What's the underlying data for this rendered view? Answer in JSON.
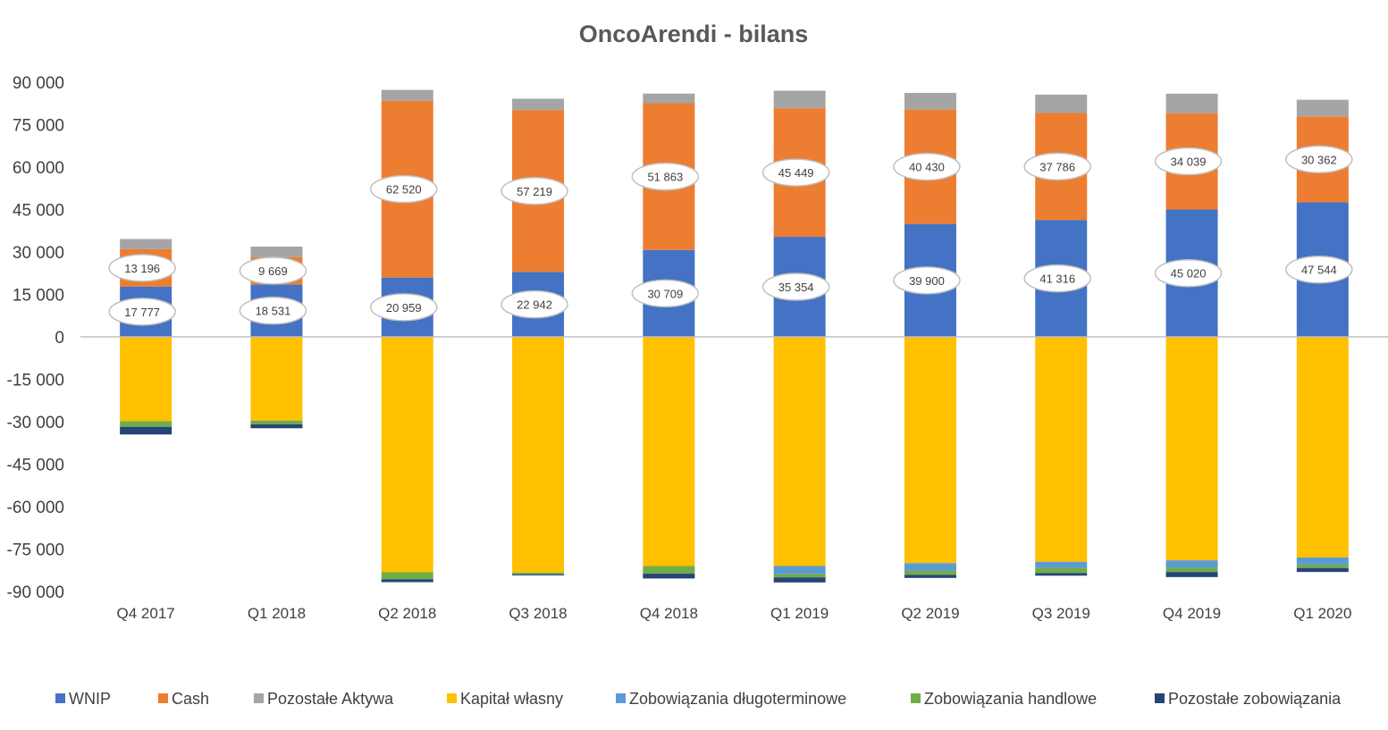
{
  "chart_data": {
    "type": "bar",
    "stacked": true,
    "title": "OncoArendi - bilans",
    "xlabel": "",
    "ylabel": "",
    "ylim": [
      -90000,
      90000
    ],
    "y_ticks": [
      90000,
      75000,
      60000,
      45000,
      30000,
      15000,
      0,
      -15000,
      -30000,
      -45000,
      -60000,
      -75000,
      -90000
    ],
    "y_tick_labels": [
      "90 000",
      "75 000",
      "60 000",
      "45 000",
      "30 000",
      "15 000",
      "0",
      "-15 000",
      "-30 000",
      "-45 000",
      "-60 000",
      "-75 000",
      "-90 000"
    ],
    "grid": false,
    "legend_position": "bottom",
    "categories": [
      "Q4 2017",
      "Q1 2018",
      "Q2 2018",
      "Q3 2018",
      "Q4 2018",
      "Q1 2019",
      "Q2 2019",
      "Q3 2019",
      "Q4 2019",
      "Q1 2020"
    ],
    "series": [
      {
        "name": "WNIP",
        "color": "#4472C4",
        "values": [
          17777,
          18531,
          20959,
          22942,
          30709,
          35354,
          39900,
          41316,
          45020,
          47544
        ]
      },
      {
        "name": "Cash",
        "color": "#ED7D31",
        "values": [
          13196,
          9669,
          62520,
          57219,
          51863,
          45449,
          40430,
          37786,
          34039,
          30362
        ]
      },
      {
        "name": "Pozostałe Aktywa",
        "color": "#A5A5A5",
        "values": [
          3600,
          3700,
          3800,
          4000,
          3400,
          6200,
          5900,
          6500,
          6900,
          5900
        ]
      },
      {
        "name": "Kapitał własny",
        "color": "#FFC000",
        "values": [
          -29800,
          -29600,
          -83200,
          -83300,
          -81000,
          -81000,
          -80000,
          -79500,
          -79000,
          -78000
        ]
      },
      {
        "name": "Zobowiązania długoterminowe",
        "color": "#5B9BD5",
        "values": [
          0,
          0,
          0,
          0,
          0,
          -2800,
          -2600,
          -2100,
          -2500,
          -2500
        ]
      },
      {
        "name": "Zobowiązania handlowe",
        "color": "#70AD47",
        "values": [
          -2000,
          -1300,
          -2500,
          -600,
          -2700,
          -1200,
          -1500,
          -1900,
          -1600,
          -1200
        ]
      },
      {
        "name": "Pozostałe zobowiązania",
        "color": "#264478",
        "values": [
          -2700,
          -1400,
          -1000,
          -400,
          -1700,
          -1800,
          -1100,
          -900,
          -1800,
          -1400
        ]
      }
    ],
    "data_labels": {
      "WNIP": [
        "17 777",
        "18 531",
        "20 959",
        "22 942",
        "30 709",
        "35 354",
        "39 900",
        "41 316",
        "45 020",
        "47 544"
      ],
      "Cash": [
        "13 196",
        "9 669",
        "62 520",
        "57 219",
        "51 863",
        "45 449",
        "40 430",
        "37 786",
        "34 039",
        "30 362"
      ]
    }
  }
}
